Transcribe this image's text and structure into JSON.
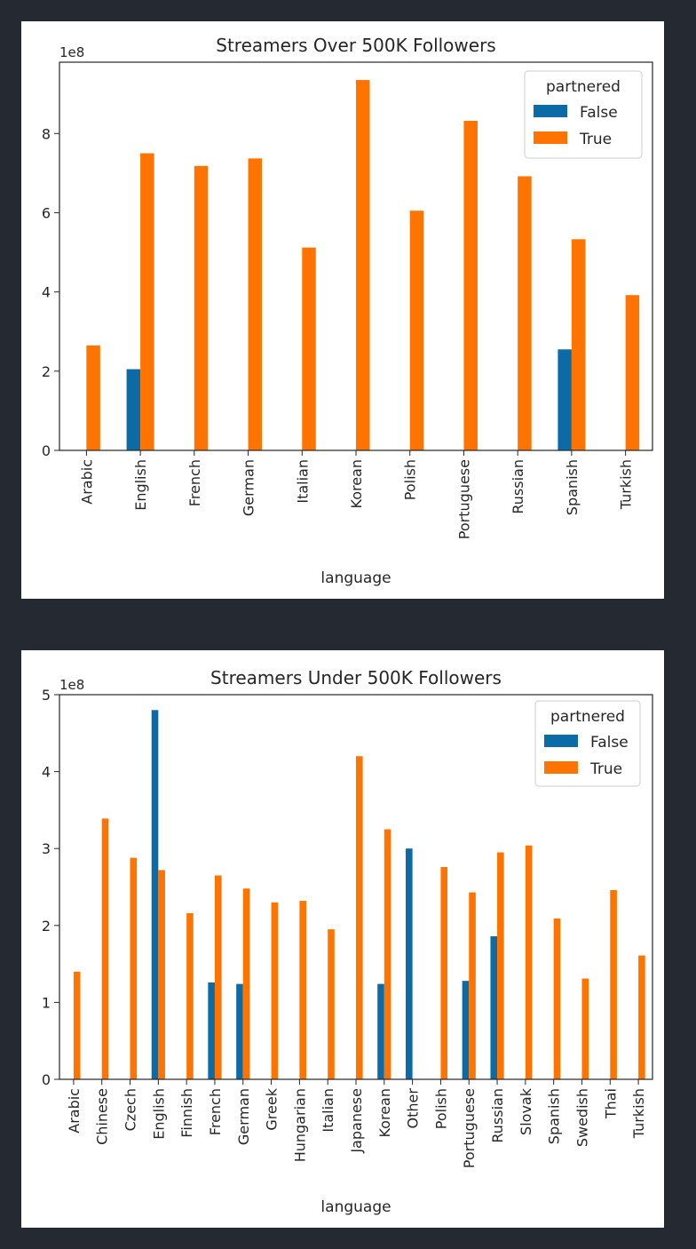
{
  "chart_data": [
    {
      "type": "bar",
      "title": "Streamers Over 500K Followers",
      "xlabel": "language",
      "ylabel": "",
      "y_offset_label": "1e8",
      "ylim": [
        0,
        9.8
      ],
      "yticks": [
        0,
        2,
        4,
        6,
        8
      ],
      "legend": {
        "title": "partnered",
        "position": "top-right"
      },
      "categories": [
        "Arabic",
        "English",
        "French",
        "German",
        "Italian",
        "Korean",
        "Polish",
        "Portuguese",
        "Russian",
        "Spanish",
        "Turkish"
      ],
      "series": [
        {
          "name": "False",
          "color": "#0b6ba6",
          "values": [
            0,
            2.05,
            0,
            0,
            0,
            0,
            0,
            0,
            0,
            2.55,
            0
          ]
        },
        {
          "name": "True",
          "color": "#ff7400",
          "values": [
            2.65,
            7.5,
            7.18,
            7.37,
            5.12,
            9.35,
            6.05,
            8.32,
            6.92,
            5.33,
            3.92
          ]
        }
      ]
    },
    {
      "type": "bar",
      "title": "Streamers Under 500K Followers",
      "xlabel": "language",
      "ylabel": "",
      "y_offset_label": "1e8",
      "ylim": [
        0,
        5.0
      ],
      "yticks": [
        0,
        1,
        2,
        3,
        4,
        5
      ],
      "legend": {
        "title": "partnered",
        "position": "top-right"
      },
      "categories": [
        "Arabic",
        "Chinese",
        "Czech",
        "English",
        "Finnish",
        "French",
        "German",
        "Greek",
        "Hungarian",
        "Italian",
        "Japanese",
        "Korean",
        "Other",
        "Polish",
        "Portuguese",
        "Russian",
        "Slovak",
        "Spanish",
        "Swedish",
        "Thai",
        "Turkish"
      ],
      "series": [
        {
          "name": "False",
          "color": "#0b6ba6",
          "values": [
            0,
            0,
            0,
            4.8,
            0,
            1.26,
            1.24,
            0,
            0,
            0,
            0,
            1.24,
            3.0,
            0,
            1.28,
            1.86,
            0,
            0,
            0,
            0,
            0
          ]
        },
        {
          "name": "True",
          "color": "#ff7400",
          "values": [
            1.4,
            3.39,
            2.88,
            2.72,
            2.16,
            2.65,
            2.48,
            2.3,
            2.32,
            1.95,
            4.2,
            3.25,
            0,
            2.76,
            2.43,
            2.95,
            3.04,
            2.09,
            1.31,
            2.46,
            1.61
          ]
        }
      ]
    }
  ]
}
